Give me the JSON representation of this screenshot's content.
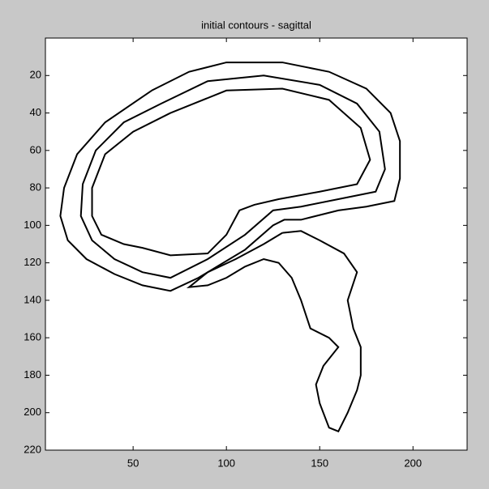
{
  "chart_data": {
    "type": "contour",
    "title": "initial contours - sagittal",
    "xlim": [
      3,
      229
    ],
    "ylim": [
      0,
      220
    ],
    "y_reversed": true,
    "xticks": [
      50,
      100,
      150,
      200
    ],
    "yticks": [
      20,
      40,
      60,
      80,
      100,
      120,
      140,
      160,
      180,
      200,
      220
    ],
    "series": [
      {
        "color": "#000000",
        "x": [
          60,
          80,
          100,
          130,
          155,
          175,
          188,
          193,
          193,
          190,
          175,
          160,
          140,
          131,
          125,
          110,
          95,
          85,
          70,
          55,
          40,
          25,
          15,
          11,
          13,
          20,
          35,
          60
        ],
        "y": [
          28,
          18,
          13,
          13,
          18,
          27,
          40,
          55,
          75,
          87,
          90,
          92,
          97,
          97,
          100,
          113,
          122,
          128,
          135,
          132,
          126,
          118,
          108,
          95,
          80,
          62,
          45,
          28
        ]
      },
      {
        "color": "#000000",
        "x": [
          65,
          90,
          120,
          150,
          170,
          182,
          185,
          180,
          160,
          140,
          125,
          110,
          90,
          70,
          55,
          40,
          28,
          22,
          23,
          30,
          45,
          65
        ],
        "y": [
          35,
          23,
          20,
          25,
          35,
          50,
          70,
          82,
          86,
          90,
          92,
          105,
          118,
          128,
          125,
          118,
          108,
          95,
          78,
          60,
          45,
          35
        ]
      },
      {
        "color": "#000000",
        "x": [
          70,
          100,
          130,
          155,
          172,
          177,
          170,
          150,
          128,
          115,
          107,
          100,
          90,
          70,
          55,
          45,
          33,
          28,
          28,
          35,
          50,
          70
        ],
        "y": [
          40,
          28,
          27,
          33,
          48,
          65,
          78,
          82,
          86,
          89,
          92,
          105,
          115,
          116,
          112,
          110,
          105,
          95,
          80,
          62,
          50,
          40
        ]
      },
      {
        "color": "#000000",
        "x": [
          130,
          140,
          150,
          163,
          170,
          165,
          168,
          172,
          172,
          170,
          165,
          160,
          155,
          150,
          148,
          152,
          160,
          155,
          145,
          140,
          135,
          128,
          120,
          110,
          100,
          90,
          80,
          90,
          105,
          120,
          130
        ],
        "y": [
          104,
          103,
          108,
          115,
          125,
          140,
          155,
          165,
          180,
          188,
          200,
          210,
          208,
          195,
          185,
          175,
          165,
          160,
          155,
          140,
          128,
          120,
          118,
          122,
          128,
          132,
          133,
          125,
          118,
          110,
          104
        ]
      }
    ]
  }
}
